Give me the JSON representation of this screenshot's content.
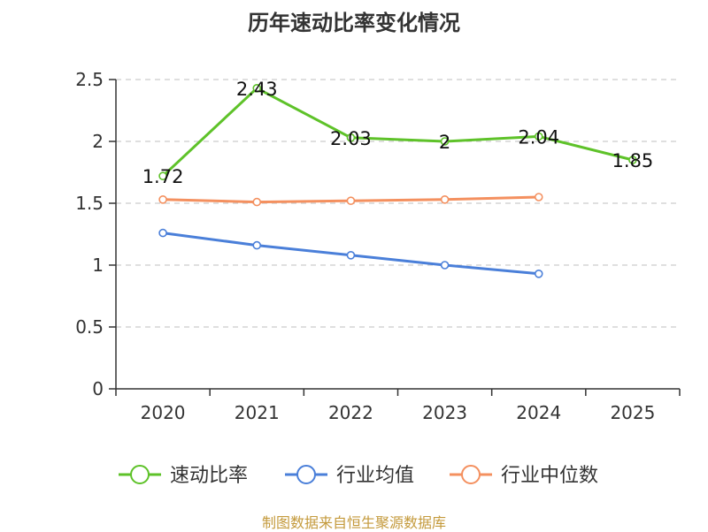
{
  "chart_data": {
    "type": "line",
    "title": "历年速动比率变化情况",
    "categories": [
      "2020",
      "2021",
      "2022",
      "2023",
      "2024",
      "2025"
    ],
    "ylim": [
      0,
      2.5
    ],
    "yticks": [
      "0",
      "0.5",
      "1",
      "1.5",
      "2",
      "2.5"
    ],
    "grid": true,
    "legend_position": "bottom",
    "series": [
      {
        "name": "速动比率",
        "color": "#5ec229",
        "values": [
          1.72,
          2.43,
          2.03,
          2.0,
          2.04,
          1.85
        ],
        "labels": [
          "1.72",
          "2.43",
          "2.03",
          "2",
          "2.04",
          "1.85"
        ],
        "show_labels": true
      },
      {
        "name": "行业均值",
        "color": "#4a7fd9",
        "values": [
          1.26,
          1.16,
          1.08,
          1.0,
          0.93,
          null
        ],
        "show_labels": false
      },
      {
        "name": "行业中位数",
        "color": "#f4905f",
        "values": [
          1.53,
          1.51,
          1.52,
          1.53,
          1.55,
          null
        ],
        "show_labels": false
      }
    ]
  },
  "source_note": "制图数据来自恒生聚源数据库"
}
